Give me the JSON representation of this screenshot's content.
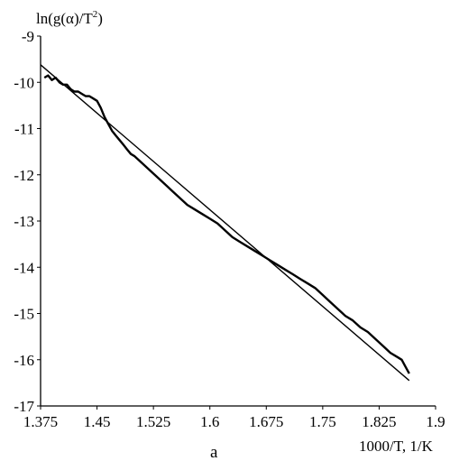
{
  "chart_data": {
    "type": "line",
    "title": "",
    "caption": "a",
    "xlabel": "1000/T, 1/K",
    "ylabel": "ln(g(α)/T²)",
    "ylabel_main": "ln(g(α)/T",
    "ylabel_sup": "2",
    "ylabel_close": ")",
    "xlim": [
      1.375,
      1.9
    ],
    "ylim": [
      -17,
      -9
    ],
    "xticks": [
      1.375,
      1.45,
      1.525,
      1.6,
      1.675,
      1.75,
      1.825,
      1.9
    ],
    "xtick_labels": [
      "1.375",
      "1.45",
      "1.525",
      "1.6",
      "1.675",
      "1.75",
      "1.825",
      "1.9"
    ],
    "yticks": [
      -9,
      -10,
      -11,
      -12,
      -13,
      -14,
      -15,
      -16,
      -17
    ],
    "ytick_labels": [
      "-9",
      "-10",
      "-11",
      "-12",
      "-13",
      "-14",
      "-15",
      "-16",
      "-17"
    ],
    "grid": false,
    "series": [
      {
        "kind": "experimental",
        "color": "#000000",
        "x": [
          1.38,
          1.385,
          1.39,
          1.395,
          1.4,
          1.405,
          1.41,
          1.415,
          1.42,
          1.425,
          1.43,
          1.435,
          1.44,
          1.445,
          1.45,
          1.455,
          1.46,
          1.465,
          1.47,
          1.475,
          1.48,
          1.485,
          1.49,
          1.495,
          1.5,
          1.51,
          1.52,
          1.53,
          1.54,
          1.55,
          1.56,
          1.57,
          1.58,
          1.59,
          1.6,
          1.61,
          1.62,
          1.63,
          1.64,
          1.65,
          1.66,
          1.67,
          1.68,
          1.69,
          1.7,
          1.71,
          1.72,
          1.73,
          1.74,
          1.75,
          1.76,
          1.77,
          1.78,
          1.79,
          1.8,
          1.81,
          1.82,
          1.83,
          1.84,
          1.85,
          1.855,
          1.86,
          1.865
        ],
        "y": [
          -9.9,
          -9.85,
          -9.95,
          -9.9,
          -10.0,
          -10.05,
          -10.05,
          -10.15,
          -10.2,
          -10.2,
          -10.25,
          -10.3,
          -10.3,
          -10.35,
          -10.4,
          -10.55,
          -10.75,
          -10.9,
          -11.05,
          -11.15,
          -11.25,
          -11.35,
          -11.45,
          -11.55,
          -11.6,
          -11.75,
          -11.9,
          -12.05,
          -12.2,
          -12.35,
          -12.5,
          -12.65,
          -12.75,
          -12.85,
          -12.95,
          -13.05,
          -13.2,
          -13.35,
          -13.45,
          -13.55,
          -13.65,
          -13.75,
          -13.85,
          -13.95,
          -14.05,
          -14.15,
          -14.25,
          -14.35,
          -14.45,
          -14.6,
          -14.75,
          -14.9,
          -15.05,
          -15.15,
          -15.3,
          -15.4,
          -15.55,
          -15.7,
          -15.85,
          -15.95,
          -16.0,
          -16.15,
          -16.3
        ]
      },
      {
        "kind": "linear fit",
        "color": "#000000",
        "x": [
          1.375,
          1.865
        ],
        "y": [
          -9.62,
          -16.45
        ]
      }
    ]
  }
}
